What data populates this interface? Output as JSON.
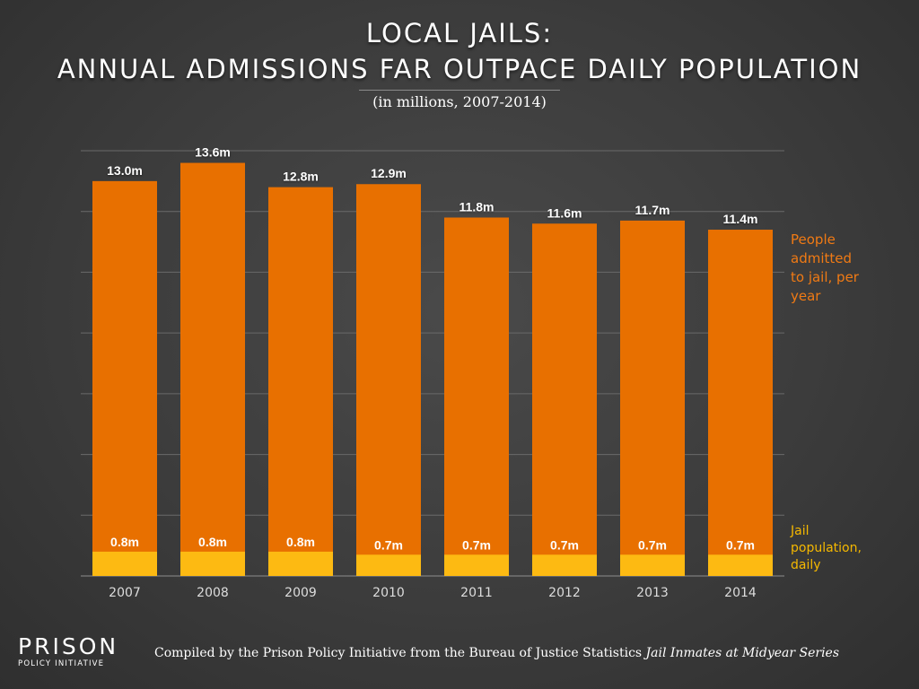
{
  "chart_data": {
    "type": "bar",
    "title_line1": "LOCAL JAILS:",
    "title_line2": "ANNUAL ADMISSIONS FAR OUTPACE DAILY POPULATION",
    "subtitle": "(in millions, 2007-2014)",
    "categories": [
      "2007",
      "2008",
      "2009",
      "2010",
      "2011",
      "2012",
      "2013",
      "2014"
    ],
    "series": [
      {
        "name": "People admitted to jail, per year",
        "name_lines": [
          "People",
          "admitted",
          "to jail, per",
          "year"
        ],
        "values": [
          13.0,
          13.6,
          12.8,
          12.9,
          11.8,
          11.6,
          11.7,
          11.4
        ],
        "labels": [
          "13.0m",
          "13.6m",
          "12.8m",
          "12.9m",
          "11.8m",
          "11.6m",
          "11.7m",
          "11.4m"
        ],
        "color": "#E87000"
      },
      {
        "name": "Jail population, daily",
        "name_lines": [
          "Jail",
          "population,",
          "daily"
        ],
        "values": [
          0.8,
          0.8,
          0.8,
          0.7,
          0.7,
          0.7,
          0.7,
          0.7
        ],
        "labels": [
          "0.8m",
          "0.8m",
          "0.8m",
          "0.7m",
          "0.7m",
          "0.7m",
          "0.7m",
          "0.7m"
        ],
        "color": "#FDBA12"
      }
    ],
    "ylim": [
      0,
      14
    ],
    "grid": true,
    "legend": "right"
  },
  "footer": {
    "logo_main": "PRISON",
    "logo_sub": "POLICY INITIATIVE",
    "source_prefix": "Compiled by the Prison Policy Initiative from the Bureau of Justice Statistics ",
    "source_italic": "Jail Inmates at Midyear Series"
  },
  "colors": {
    "admissions": "#E87000",
    "population": "#FDBA12",
    "admissions_label": "#F07A14",
    "population_label": "#F5B800"
  }
}
